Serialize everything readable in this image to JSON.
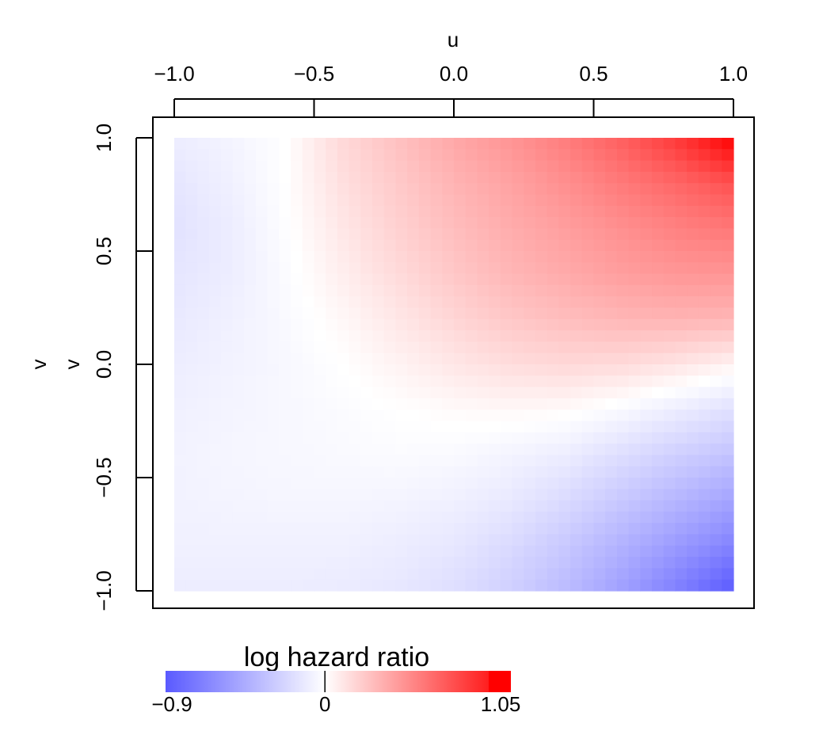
{
  "chart_data": {
    "type": "heatmap",
    "title": "",
    "xlabel": "u",
    "ylabel": "v",
    "ylabel_secondary": "v",
    "x_ticks": [
      "−1.0",
      "−0.5",
      "0.0",
      "0.5",
      "1.0"
    ],
    "y_ticks": [
      "−1.0",
      "−0.5",
      "0.0",
      "0.5",
      "1.0"
    ],
    "x_tick_values": [
      -1.0,
      -0.5,
      0.0,
      0.5,
      1.0
    ],
    "y_tick_values": [
      -1.0,
      -0.5,
      0.0,
      0.5,
      1.0
    ],
    "xlim": [
      -1.0,
      1.0
    ],
    "ylim": [
      -1.0,
      1.0
    ],
    "x_axis_position": "top",
    "grid": false,
    "x": [
      -1.0,
      -0.8,
      -0.6,
      -0.4,
      -0.2,
      0.0,
      0.2,
      0.4,
      0.6,
      0.8,
      1.0
    ],
    "y": [
      1.0,
      0.8,
      0.6,
      0.4,
      0.2,
      0.0,
      -0.2,
      -0.4,
      -0.6,
      -0.8,
      -1.0
    ],
    "z": [
      [
        -0.1,
        -0.06,
        0.0,
        0.16,
        0.26,
        0.36,
        0.44,
        0.54,
        0.66,
        0.82,
        1.05
      ],
      [
        -0.14,
        -0.08,
        0.0,
        0.13,
        0.22,
        0.31,
        0.38,
        0.46,
        0.55,
        0.63,
        0.72
      ],
      [
        -0.16,
        -0.1,
        -0.01,
        0.1,
        0.19,
        0.27,
        0.34,
        0.4,
        0.46,
        0.52,
        0.56
      ],
      [
        -0.14,
        -0.1,
        -0.02,
        0.07,
        0.15,
        0.23,
        0.3,
        0.35,
        0.4,
        0.43,
        0.44
      ],
      [
        -0.12,
        -0.08,
        -0.03,
        0.03,
        0.1,
        0.17,
        0.23,
        0.27,
        0.3,
        0.31,
        0.3
      ],
      [
        -0.1,
        -0.07,
        -0.04,
        0.0,
        0.05,
        0.1,
        0.14,
        0.16,
        0.15,
        0.11,
        0.05
      ],
      [
        -0.08,
        -0.06,
        -0.04,
        -0.02,
        0.0,
        0.02,
        0.03,
        0.02,
        -0.03,
        -0.1,
        -0.17
      ],
      [
        -0.07,
        -0.05,
        -0.04,
        -0.03,
        -0.02,
        -0.03,
        -0.06,
        -0.1,
        -0.18,
        -0.26,
        -0.33
      ],
      [
        -0.07,
        -0.06,
        -0.05,
        -0.05,
        -0.06,
        -0.08,
        -0.12,
        -0.2,
        -0.3,
        -0.4,
        -0.5
      ],
      [
        -0.08,
        -0.08,
        -0.08,
        -0.08,
        -0.1,
        -0.13,
        -0.2,
        -0.3,
        -0.42,
        -0.55,
        -0.68
      ],
      [
        -0.1,
        -0.1,
        -0.1,
        -0.11,
        -0.13,
        -0.18,
        -0.26,
        -0.37,
        -0.52,
        -0.7,
        -0.9
      ]
    ],
    "colorbar": {
      "title": "log hazard ratio",
      "min": -0.9,
      "max": 1.05,
      "mid": 0,
      "min_label": "−0.9",
      "mid_label": "0",
      "max_label": "1.05",
      "low_color": "#5a5aff",
      "mid_color": "#ffffff",
      "high_color": "#ff0000"
    }
  }
}
